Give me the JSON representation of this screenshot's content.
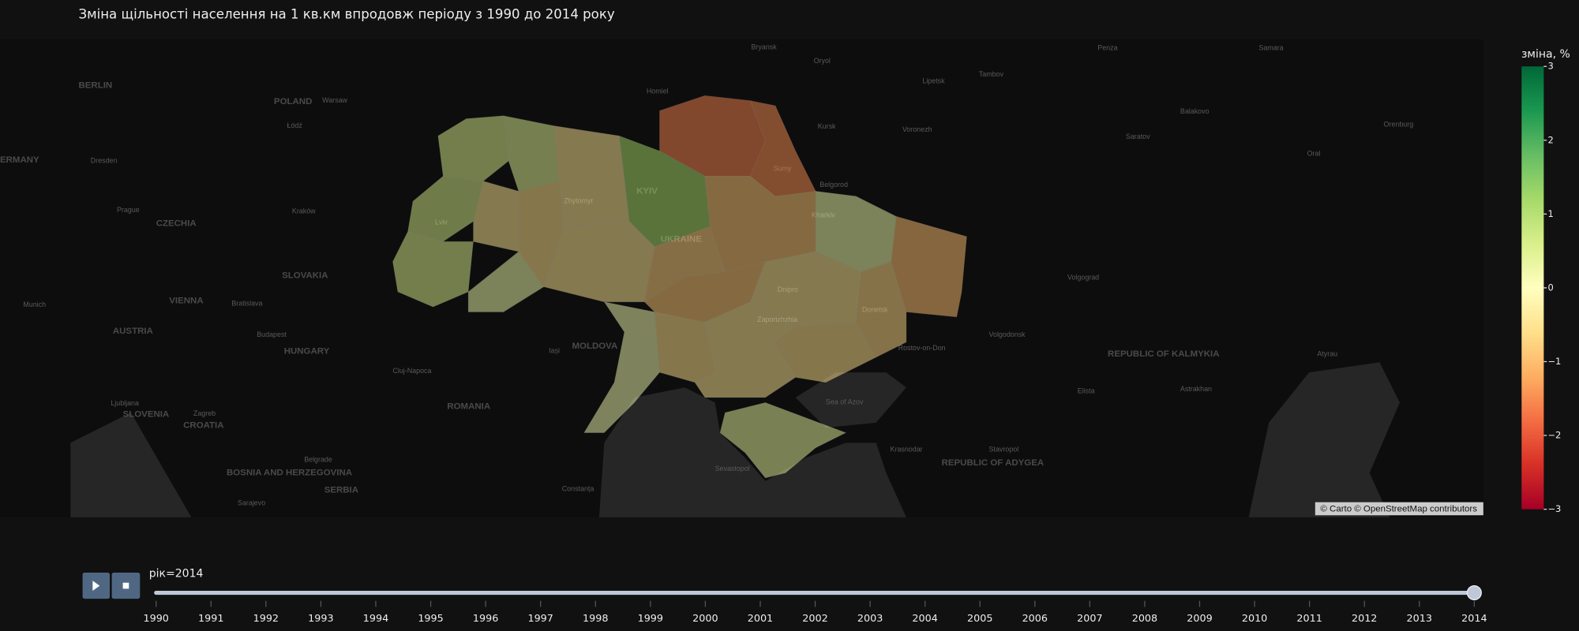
{
  "chart_data": {
    "type": "choropleth",
    "title": "Зміна щільності населення на 1 кв.км впродовж періоду з 1990 до 2014 року",
    "values": [
      0.6,
      0.5,
      0.7,
      -0.5,
      0.6,
      0.3,
      -0.6,
      -0.5,
      1.2,
      -1.6,
      -1.5,
      -0.5,
      -0.9,
      -0.8,
      0.3,
      -1.0,
      -0.7,
      -0.5,
      -0.9,
      0.2,
      -0.6,
      -0.6,
      -0.5,
      0.4
    ],
    "colorbar_title": "зміна, %",
    "zlim": [
      -3,
      3
    ],
    "zticks": [
      3,
      2,
      1,
      0,
      {
        "value": -1,
        "label": "−1"
      },
      {
        "value": -2,
        "label": "−2"
      },
      {
        "value": -3,
        "label": "−3"
      }
    ],
    "colorscale": [
      "#a50026",
      "#d73027",
      "#f46d43",
      "#fdae61",
      "#fee08b",
      "#ffffbf",
      "#d9ef8b",
      "#a6d96a",
      "#66bd63",
      "#1a9850",
      "#006837"
    ],
    "opacity": 0.5
  },
  "map": {
    "attribution": "© Carto © OpenStreetMap contributors",
    "labels": [
      "ERMANY",
      "BERLIN",
      "POLAND",
      "Warsaw",
      "Łódź",
      "Dresden",
      "Prague",
      "CZECHIA",
      "Kraków",
      "SLOVAKIA",
      "VIENNA",
      "Bratislava",
      "AUSTRIA",
      "Munich",
      "Budapest",
      "HUNGARY",
      "Ljubljana",
      "SLOVENIA",
      "Zagreb",
      "CROATIA",
      "Belgrade",
      "SERBIA",
      "ROMANIA",
      "MOLDOVA",
      "Iași",
      "Cluj-Napoca",
      "Sarajevo",
      "Constanța",
      "Bryansk",
      "Oryol",
      "Homiel",
      "Lipetsk",
      "Tambov",
      "Penza",
      "Kursk",
      "Voronezh",
      "Belgorod",
      "Saratov",
      "Balakovo",
      "Orenburg",
      "Samara",
      "Oral",
      "Volgograd",
      "Volgodonsk",
      "Rostov-on-Don",
      "Elista",
      "REPUBLIC OF KALMYKIA",
      "Astrakhan",
      "Atyrau",
      "Stavropol",
      "Krasnodar",
      "REPUBLIC OF ADYGEA",
      "Sevastopol",
      "Sea of Azov",
      "KYIV",
      "UKRAINE",
      "Kharkiv",
      "Sumy",
      "Dnipro",
      "Zaporizhzhia",
      "Donetsk",
      "Lviv",
      "Zhytomyr",
      "BOSNIA AND HERZEGOVINA"
    ]
  },
  "slider": {
    "label": "рік=2014",
    "current": 2014,
    "years": [
      1990,
      1991,
      1992,
      1993,
      1994,
      1995,
      1996,
      1997,
      1998,
      1999,
      2000,
      2001,
      2002,
      2003,
      2004,
      2005,
      2006,
      2007,
      2008,
      2009,
      2010,
      2011,
      2012,
      2013,
      2014
    ]
  }
}
